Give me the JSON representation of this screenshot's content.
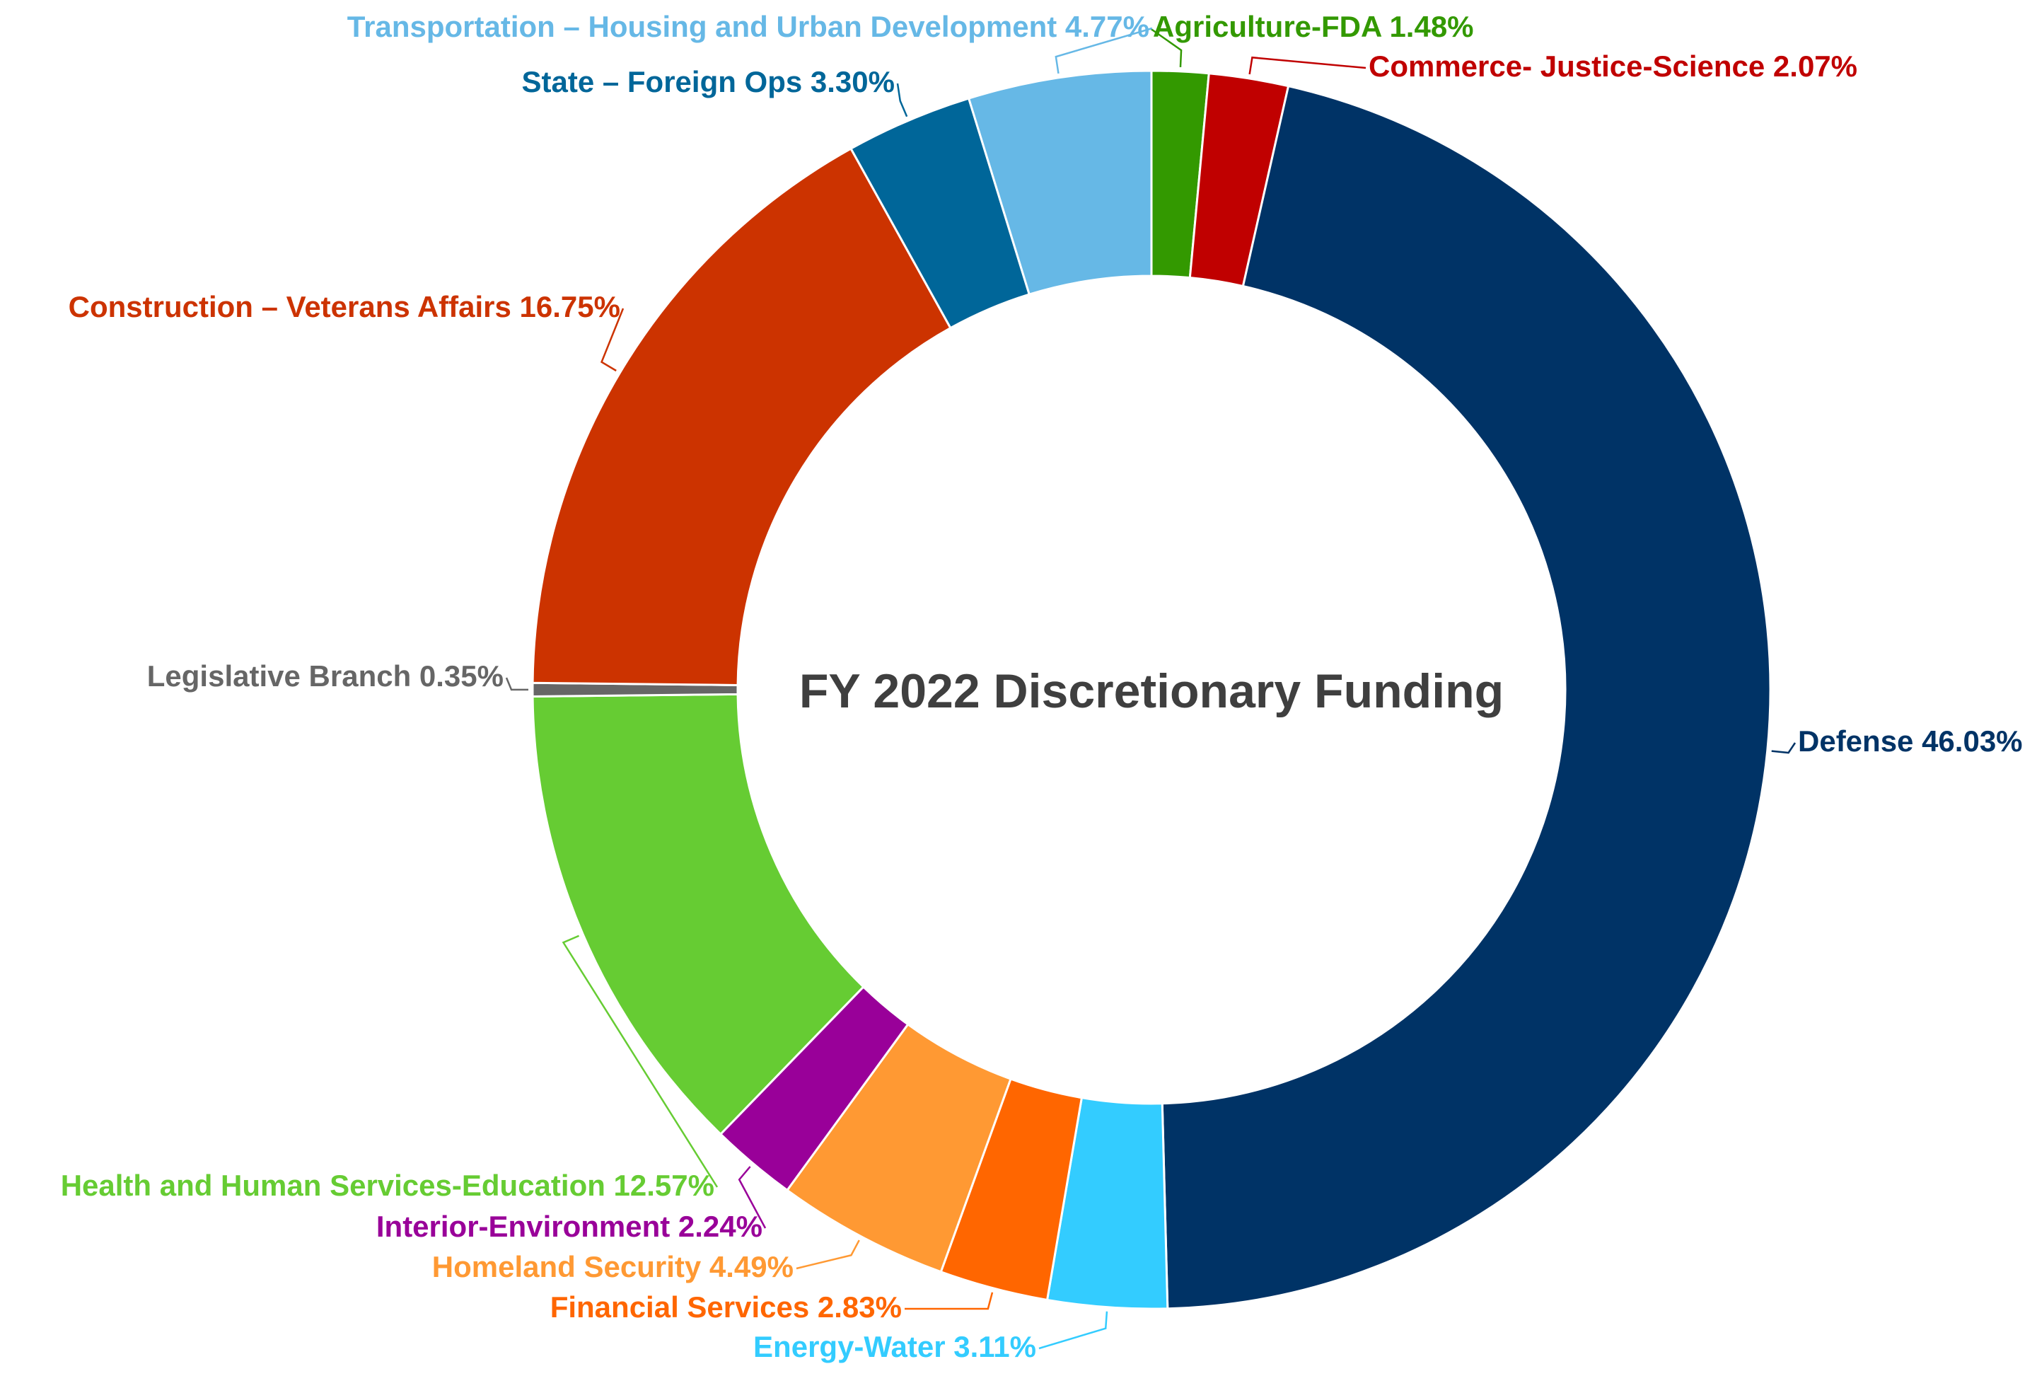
{
  "chart_data": {
    "type": "pie",
    "title": "FY 2022 Discretionary Funding",
    "slices": [
      {
        "label": "Agriculture-FDA",
        "value_label": "1.48%",
        "value": 1.48,
        "color": "#339900"
      },
      {
        "label": "Commerce- Justice-Science",
        "value_label": "2.07%",
        "value": 2.07,
        "color": "#c00000"
      },
      {
        "label": "Defense",
        "value_label": "46.03%",
        "value": 46.03,
        "color": "#003366"
      },
      {
        "label": "Energy-Water",
        "value_label": "3.11%",
        "value": 3.11,
        "color": "#33ccff"
      },
      {
        "label": "Financial Services",
        "value_label": "2.83%",
        "value": 2.83,
        "color": "#ff6600"
      },
      {
        "label": "Homeland Security",
        "value_label": "4.49%",
        "value": 4.49,
        "color": "#ff9933"
      },
      {
        "label": "Interior-Environment",
        "value_label": "2.24%",
        "value": 2.24,
        "color": "#990099"
      },
      {
        "label": "Health and Human Services-Education",
        "value_label": "12.57%",
        "value": 12.57,
        "color": "#66cc33"
      },
      {
        "label": "Legislative Branch",
        "value_label": "0.35%",
        "value": 0.35,
        "color": "#666666"
      },
      {
        "label": "Construction – Veterans Affairs",
        "value_label": "16.75%",
        "value": 16.75,
        "color": "#cc3300"
      },
      {
        "label": "State – Foreign Ops",
        "value_label": "3.30%",
        "value": 3.3,
        "color": "#006699"
      },
      {
        "label": "Transportation – Housing and Urban Development",
        "value_label": "4.77%",
        "value": 4.77,
        "color": "#66b8e6"
      }
    ]
  }
}
